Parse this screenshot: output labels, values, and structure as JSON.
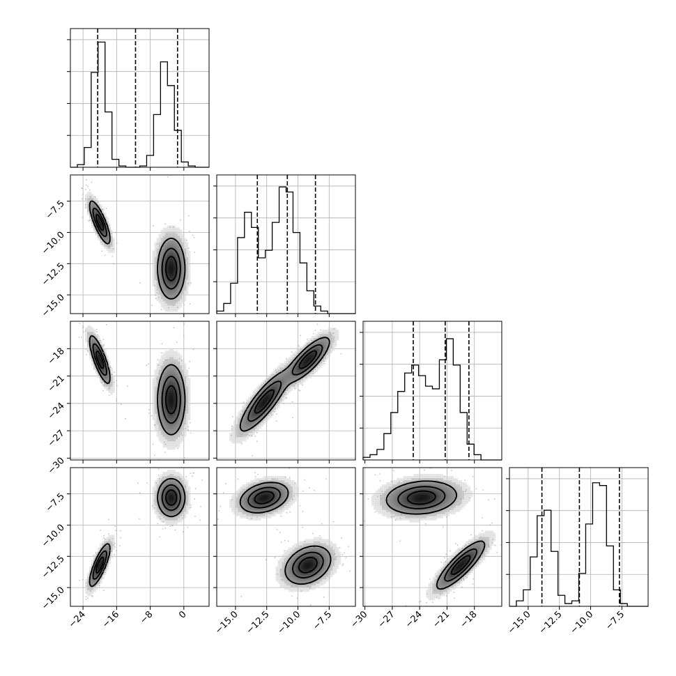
{
  "chart_data": {
    "type": "corner",
    "n_params": 4,
    "grid": true,
    "params": [
      {
        "range": [
          -27,
          6
        ],
        "ticks": [
          -24,
          -16,
          -8,
          0
        ],
        "tick_labels": [
          "−24",
          "−16",
          "−8",
          "0"
        ],
        "quantiles": [
          -20.5,
          -11.5,
          -1.5
        ]
      },
      {
        "range": [
          -16.5,
          -5.4
        ],
        "ticks": [
          -15.0,
          -12.5,
          -10.0,
          -7.5
        ],
        "tick_labels": [
          "−15.0",
          "−12.5",
          "−10.0",
          "−7.5"
        ],
        "quantiles": [
          -13.25,
          -10.85,
          -8.6
        ]
      },
      {
        "range": [
          -30.2,
          -15.0
        ],
        "ticks": [
          -30,
          -27,
          -24,
          -21,
          -18
        ],
        "tick_labels": [
          "−30",
          "−27",
          "−24",
          "−21",
          "−18"
        ],
        "quantiles": [
          -24.7,
          -21.2,
          -18.6
        ]
      },
      {
        "range": [
          -16.5,
          -5.4
        ],
        "ticks": [
          -15.0,
          -12.5,
          -10.0,
          -7.5
        ],
        "tick_labels": [
          "−15.0",
          "−12.5",
          "−10.0",
          "−7.5"
        ],
        "quantiles": [
          -13.9,
          -10.9,
          -7.7
        ]
      }
    ],
    "histograms": [
      {
        "counts": [
          0,
          2,
          15,
          72,
          95,
          42,
          6,
          1,
          0,
          0,
          1,
          9,
          40,
          80,
          62,
          28,
          4,
          1,
          0,
          0
        ],
        "max": 100
      },
      {
        "counts": [
          1,
          4,
          12,
          30,
          40,
          34,
          22,
          25,
          36,
          50,
          48,
          32,
          20,
          9,
          3,
          1,
          0,
          0,
          0,
          0
        ],
        "max": 52
      },
      {
        "counts": [
          1,
          2,
          4,
          10,
          18,
          26,
          33,
          36,
          32,
          28,
          27,
          38,
          46,
          36,
          18,
          6,
          2,
          0,
          0,
          0
        ],
        "max": 50
      },
      {
        "counts": [
          0,
          2,
          6,
          18,
          33,
          35,
          20,
          4,
          1,
          2,
          12,
          30,
          45,
          44,
          22,
          6,
          1,
          0,
          0,
          0
        ],
        "max": 48
      }
    ],
    "modes": [
      {
        "i": 1,
        "j": 0,
        "blobs": [
          {
            "cx": -20.0,
            "cy": -9.2,
            "sx": 1.2,
            "sy": 0.85,
            "rho": -0.8,
            "w": 0.5
          },
          {
            "cx": -3.0,
            "cy": -12.9,
            "sx": 1.6,
            "sy": 1.2,
            "rho": 0.0,
            "w": 0.5
          }
        ]
      },
      {
        "i": 2,
        "j": 0,
        "blobs": [
          {
            "cx": -20.0,
            "cy": -19.2,
            "sx": 1.2,
            "sy": 1.3,
            "rho": -0.8,
            "w": 0.5
          },
          {
            "cx": -3.0,
            "cy": -23.6,
            "sx": 1.6,
            "sy": 1.9,
            "rho": 0.0,
            "w": 0.5
          }
        ]
      },
      {
        "i": 2,
        "j": 1,
        "blobs": [
          {
            "cx": -12.7,
            "cy": -23.8,
            "sx": 0.95,
            "sy": 1.6,
            "rho": 0.85,
            "w": 0.5
          },
          {
            "cx": -9.2,
            "cy": -19.2,
            "sx": 0.85,
            "sy": 1.2,
            "rho": 0.8,
            "w": 0.5
          }
        ]
      },
      {
        "i": 3,
        "j": 0,
        "blobs": [
          {
            "cx": -20.0,
            "cy": -13.2,
            "sx": 1.2,
            "sy": 0.85,
            "rho": 0.8,
            "w": 0.5
          },
          {
            "cx": -3.0,
            "cy": -7.8,
            "sx": 1.6,
            "sy": 0.75,
            "rho": 0.0,
            "w": 0.5
          }
        ]
      },
      {
        "i": 3,
        "j": 1,
        "blobs": [
          {
            "cx": -12.7,
            "cy": -7.8,
            "sx": 0.95,
            "sy": 0.6,
            "rho": 0.3,
            "w": 0.5
          },
          {
            "cx": -9.2,
            "cy": -13.2,
            "sx": 0.9,
            "sy": 0.75,
            "rho": 0.3,
            "w": 0.5
          }
        ]
      },
      {
        "i": 3,
        "j": 2,
        "blobs": [
          {
            "cx": -23.8,
            "cy": -7.8,
            "sx": 1.9,
            "sy": 0.65,
            "rho": 0.15,
            "w": 0.5
          },
          {
            "cx": -19.5,
            "cy": -13.2,
            "sx": 1.3,
            "sy": 0.95,
            "rho": 0.85,
            "w": 0.5
          }
        ]
      }
    ]
  }
}
